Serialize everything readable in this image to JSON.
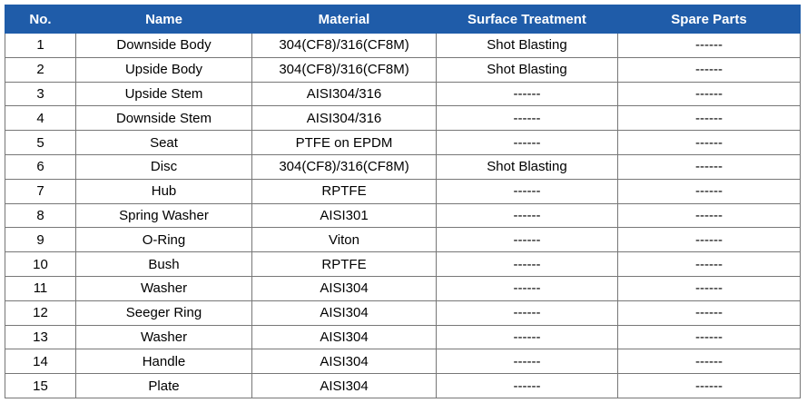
{
  "table": {
    "header": [
      "No.",
      "Name",
      "Material",
      "Surface Treatment",
      "Spare Parts"
    ],
    "rows": [
      [
        "1",
        "Downside Body",
        "304(CF8)/316(CF8M)",
        "Shot Blasting",
        "------"
      ],
      [
        "2",
        "Upside Body",
        "304(CF8)/316(CF8M)",
        "Shot Blasting",
        "------"
      ],
      [
        "3",
        "Upside Stem",
        "AISI304/316",
        "------",
        "------"
      ],
      [
        "4",
        "Downside Stem",
        "AISI304/316",
        "------",
        "------"
      ],
      [
        "5",
        "Seat",
        "PTFE on EPDM",
        "------",
        "------"
      ],
      [
        "6",
        "Disc",
        "304(CF8)/316(CF8M)",
        "Shot Blasting",
        "------"
      ],
      [
        "7",
        "Hub",
        "RPTFE",
        "------",
        "------"
      ],
      [
        "8",
        "Spring Washer",
        "AISI301",
        "------",
        "------"
      ],
      [
        "9",
        "O-Ring",
        "Viton",
        "------",
        "------"
      ],
      [
        "10",
        "Bush",
        "RPTFE",
        "------",
        "------"
      ],
      [
        "11",
        "Washer",
        "AISI304",
        "------",
        "------"
      ],
      [
        "12",
        "Seeger Ring",
        "AISI304",
        "------",
        "------"
      ],
      [
        "13",
        "Washer",
        "AISI304",
        "------",
        "------"
      ],
      [
        "14",
        "Handle",
        "AISI304",
        "------",
        "------"
      ],
      [
        "15",
        "Plate",
        "AISI304",
        "------",
        "------"
      ]
    ]
  }
}
